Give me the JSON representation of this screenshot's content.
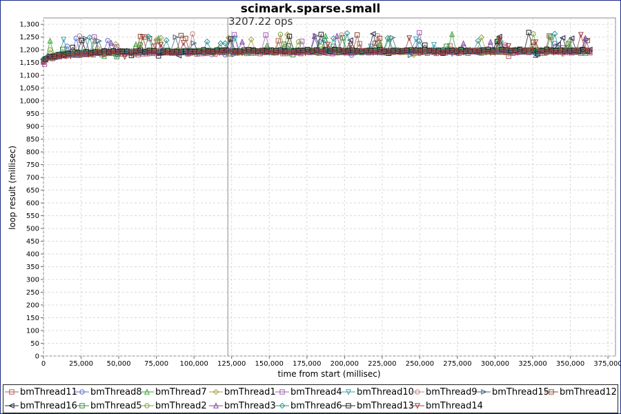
{
  "chart_data": {
    "type": "scatter",
    "title": "scimark.sparse.small",
    "annotation": "3207.22 ops",
    "xlabel": "time from start (millisec)",
    "ylabel": "loop result (millisec)",
    "xlim": [
      0,
      380000
    ],
    "ylim": [
      0,
      1325
    ],
    "xticks": [
      0,
      25000,
      50000,
      75000,
      100000,
      125000,
      150000,
      175000,
      200000,
      225000,
      250000,
      275000,
      300000,
      325000,
      350000,
      375000
    ],
    "xtick_labels": [
      "0",
      "25,000",
      "50,000",
      "75,000",
      "100,000",
      "125,000",
      "150,000",
      "175,000",
      "200,000",
      "225,000",
      "250,000",
      "275,000",
      "300,000",
      "325,000",
      "350,000",
      "375,000"
    ],
    "yticks": [
      0,
      50,
      100,
      150,
      200,
      250,
      300,
      350,
      400,
      450,
      500,
      550,
      600,
      650,
      700,
      750,
      800,
      850,
      900,
      950,
      1000,
      1050,
      1100,
      1150,
      1200,
      1250,
      1300
    ],
    "ytick_labels": [
      "0",
      "50",
      "100",
      "150",
      "200",
      "250",
      "300",
      "350",
      "400",
      "450",
      "500",
      "550",
      "600",
      "650",
      "700",
      "750",
      "800",
      "850",
      "900",
      "950",
      "1,000",
      "1,050",
      "1,100",
      "1,150",
      "1,200",
      "1,250",
      "1,300"
    ],
    "vertical_marker_x": 122500,
    "grid": true,
    "legend_position": "bottom",
    "sample_interval_ms": 3000,
    "x_range_data": [
      0,
      363000
    ],
    "series": [
      {
        "name": "bmThread11",
        "color": "#b05a5a",
        "marker": "square",
        "baseline": [
          [
            0,
            1150
          ],
          [
            3000,
            1165
          ],
          [
            15000,
            1178
          ],
          [
            40000,
            1183
          ],
          [
            120000,
            1188
          ],
          [
            360000,
            1190
          ]
        ]
      },
      {
        "name": "bmThread8",
        "color": "#5a6ec8",
        "marker": "circle",
        "baseline": [
          [
            0,
            1158
          ],
          [
            3000,
            1170
          ],
          [
            15000,
            1182
          ],
          [
            40000,
            1190
          ],
          [
            120000,
            1193
          ],
          [
            360000,
            1196
          ]
        ]
      },
      {
        "name": "bmThread7",
        "color": "#3aa03a",
        "marker": "triangle-up",
        "baseline": [
          [
            0,
            1160
          ],
          [
            3000,
            1172
          ],
          [
            15000,
            1184
          ],
          [
            40000,
            1192
          ],
          [
            120000,
            1195
          ],
          [
            360000,
            1198
          ]
        ]
      },
      {
        "name": "bmThread1",
        "color": "#a0a03a",
        "marker": "diamond",
        "baseline": [
          [
            0,
            1162
          ],
          [
            3000,
            1173
          ],
          [
            15000,
            1185
          ],
          [
            40000,
            1193
          ],
          [
            120000,
            1196
          ],
          [
            360000,
            1197
          ]
        ]
      },
      {
        "name": "bmThread4",
        "color": "#a05ab0",
        "marker": "square",
        "baseline": [
          [
            0,
            1157
          ],
          [
            3000,
            1169
          ],
          [
            15000,
            1181
          ],
          [
            40000,
            1190
          ],
          [
            120000,
            1194
          ],
          [
            360000,
            1196
          ]
        ]
      },
      {
        "name": "bmThread10",
        "color": "#3aa0b0",
        "marker": "triangle-down",
        "baseline": [
          [
            0,
            1159
          ],
          [
            3000,
            1171
          ],
          [
            15000,
            1183
          ],
          [
            40000,
            1191
          ],
          [
            120000,
            1195
          ],
          [
            360000,
            1197
          ]
        ]
      },
      {
        "name": "bmThread9",
        "color": "#c08080",
        "marker": "circle",
        "baseline": [
          [
            0,
            1156
          ],
          [
            3000,
            1168
          ],
          [
            15000,
            1180
          ],
          [
            40000,
            1189
          ],
          [
            120000,
            1193
          ],
          [
            360000,
            1195
          ]
        ]
      },
      {
        "name": "bmThread15",
        "color": "#40607a",
        "marker": "triangle-right",
        "baseline": [
          [
            0,
            1160
          ],
          [
            3000,
            1172
          ],
          [
            15000,
            1184
          ],
          [
            40000,
            1192
          ],
          [
            120000,
            1196
          ],
          [
            360000,
            1198
          ]
        ]
      },
      {
        "name": "bmThread12",
        "color": "#8a4a30",
        "marker": "square",
        "baseline": [
          [
            0,
            1155
          ],
          [
            3000,
            1167
          ],
          [
            15000,
            1179
          ],
          [
            40000,
            1188
          ],
          [
            120000,
            1192
          ],
          [
            360000,
            1194
          ]
        ]
      },
      {
        "name": "bmThread16",
        "color": "#202040",
        "marker": "triangle-left",
        "baseline": [
          [
            0,
            1161
          ],
          [
            3000,
            1173
          ],
          [
            15000,
            1185
          ],
          [
            40000,
            1193
          ],
          [
            120000,
            1196
          ],
          [
            360000,
            1198
          ]
        ]
      },
      {
        "name": "bmThread5",
        "color": "#3a8a3a",
        "marker": "square",
        "baseline": [
          [
            0,
            1158
          ],
          [
            3000,
            1170
          ],
          [
            15000,
            1182
          ],
          [
            40000,
            1191
          ],
          [
            120000,
            1194
          ],
          [
            360000,
            1196
          ]
        ]
      },
      {
        "name": "bmThread2",
        "color": "#7aa03a",
        "marker": "circle",
        "baseline": [
          [
            0,
            1160
          ],
          [
            3000,
            1172
          ],
          [
            15000,
            1184
          ],
          [
            40000,
            1192
          ],
          [
            120000,
            1195
          ],
          [
            360000,
            1197
          ]
        ]
      },
      {
        "name": "bmThread3",
        "color": "#8040a0",
        "marker": "triangle-up",
        "baseline": [
          [
            0,
            1157
          ],
          [
            3000,
            1169
          ],
          [
            15000,
            1181
          ],
          [
            40000,
            1190
          ],
          [
            120000,
            1193
          ],
          [
            360000,
            1195
          ]
        ]
      },
      {
        "name": "bmThread6",
        "color": "#2a9090",
        "marker": "diamond",
        "baseline": [
          [
            0,
            1159
          ],
          [
            3000,
            1171
          ],
          [
            15000,
            1183
          ],
          [
            40000,
            1191
          ],
          [
            120000,
            1194
          ],
          [
            360000,
            1196
          ]
        ]
      },
      {
        "name": "bmThread13",
        "color": "#202020",
        "marker": "square",
        "baseline": [
          [
            0,
            1161
          ],
          [
            3000,
            1173
          ],
          [
            15000,
            1185
          ],
          [
            40000,
            1193
          ],
          [
            120000,
            1197
          ],
          [
            360000,
            1199
          ]
        ]
      },
      {
        "name": "bmThread14",
        "color": "#a03a3a",
        "marker": "triangle-down",
        "baseline": [
          [
            0,
            1154
          ],
          [
            3000,
            1166
          ],
          [
            15000,
            1178
          ],
          [
            40000,
            1187
          ],
          [
            120000,
            1191
          ],
          [
            360000,
            1193
          ]
        ]
      }
    ]
  },
  "colors": {
    "frame_border": "#1c2a8a",
    "plot_border": "#888888",
    "grid": "#d8d8d8",
    "marker_line": "#8a8a8a"
  }
}
